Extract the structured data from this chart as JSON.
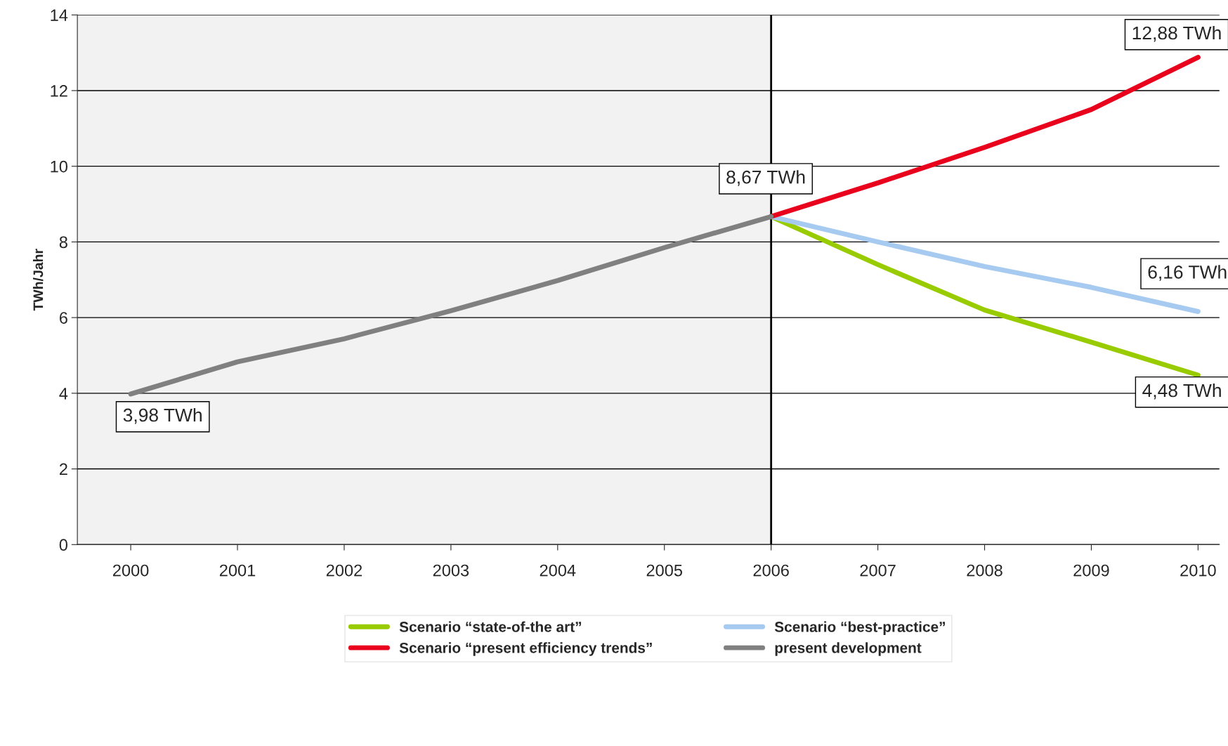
{
  "chart_data": {
    "type": "line",
    "ylabel": "TWh/Jahr",
    "xlim": [
      1999.5,
      2010.2
    ],
    "xticks": [
      2000,
      2001,
      2002,
      2003,
      2004,
      2005,
      2006,
      2007,
      2008,
      2009,
      2010
    ],
    "ylim": [
      0,
      14
    ],
    "yticks": [
      0,
      2,
      4,
      6,
      8,
      10,
      12,
      14
    ],
    "grid": "y",
    "legend": "bottom",
    "series": [
      {
        "name": "Scenario “state-of-the art”",
        "color": "#99cc00",
        "x": [
          2006,
          2007,
          2008,
          2009,
          2010
        ],
        "values": [
          8.67,
          7.4,
          6.2,
          5.35,
          4.48
        ]
      },
      {
        "name": "Scenario “best-practice”",
        "color": "#a6caf0",
        "x": [
          2006,
          2007,
          2008,
          2009,
          2010
        ],
        "values": [
          8.67,
          8.0,
          7.35,
          6.8,
          6.16
        ]
      },
      {
        "name": "Scenario “present efficiency trends”",
        "color": "#e8001c",
        "x": [
          2006,
          2007,
          2008,
          2009,
          2010
        ],
        "values": [
          8.67,
          9.56,
          10.5,
          11.5,
          12.88
        ]
      },
      {
        "name": "present development",
        "color": "#808080",
        "x": [
          2000,
          2001,
          2002,
          2003,
          2004,
          2005,
          2006
        ],
        "values": [
          3.98,
          4.83,
          5.44,
          6.18,
          6.98,
          7.85,
          8.67
        ]
      }
    ],
    "ref_lines": [
      {
        "axis": "x",
        "value": 2006,
        "color": "#000000"
      }
    ],
    "bands": [
      {
        "axis": "x",
        "from": 1999.5,
        "to": 2006,
        "color": "#f2f2f2"
      }
    ],
    "annotations": [
      {
        "text": "3,98 TWh",
        "x": 2000,
        "y": 3.98
      },
      {
        "text": "8,67 TWh",
        "x": 2006,
        "y": 8.67
      },
      {
        "text": "12,88 TWh",
        "x": 2010,
        "y": 12.88
      },
      {
        "text": "6,16 TWh",
        "x": 2010,
        "y": 6.16
      },
      {
        "text": "4,48 TWh",
        "x": 2010,
        "y": 4.48
      }
    ]
  }
}
